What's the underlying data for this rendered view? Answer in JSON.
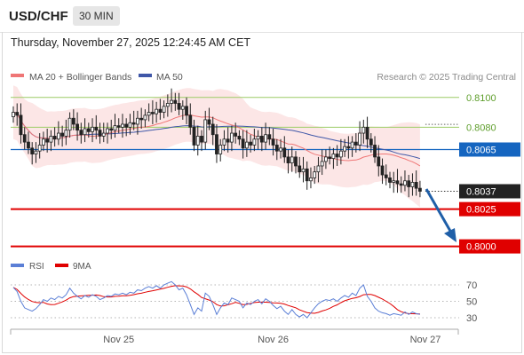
{
  "header": {
    "symbol": "USD/CHF",
    "timeframe": "30 MIN",
    "datetime": "Thursday, November 27, 2025 12:24:45 AM CET"
  },
  "legend": {
    "ma20": "MA 20 + Bollinger Bands",
    "ma50": "MA 50",
    "credit": "Research © 2025 Trading Central"
  },
  "rsi_legend": {
    "rsi": "RSI",
    "ma": "9MA"
  },
  "colors": {
    "ma20": "#ef7676",
    "ma50": "#3f57a8",
    "band": "#fbdede",
    "up": "#ffffff",
    "down": "#222222",
    "support": "#e00000",
    "resistance": "#9ccc65",
    "pivot": "#1565c0",
    "arrow": "#1f5fa8",
    "rsi": "#5b7fd6",
    "rsi_ma": "#e00000"
  },
  "chart_data": [
    {
      "type": "candlestick",
      "x_ticks": [
        "Nov 25",
        "Nov 26",
        "Nov 27"
      ],
      "levels": [
        {
          "value": 0.81,
          "label": "0.8100",
          "role": "resistance"
        },
        {
          "value": 0.808,
          "label": "0.8080",
          "role": "resistance"
        },
        {
          "value": 0.8065,
          "label": "0.8065",
          "role": "pivot"
        },
        {
          "value": 0.8037,
          "label": "0.8037",
          "role": "last-price"
        },
        {
          "value": 0.8025,
          "label": "0.8025",
          "role": "support"
        },
        {
          "value": 0.8,
          "label": "0.8000",
          "role": "support"
        }
      ],
      "forecast_arrow": {
        "from": 0.8037,
        "to": 0.8
      },
      "ylim": [
        0.7995,
        0.8107
      ],
      "close": [
        0.809,
        0.8088,
        0.8075,
        0.807,
        0.8066,
        0.8062,
        0.8064,
        0.8068,
        0.8072,
        0.807,
        0.8074,
        0.8072,
        0.8076,
        0.8074,
        0.8078,
        0.8086,
        0.8082,
        0.8078,
        0.8075,
        0.8079,
        0.8077,
        0.808,
        0.8078,
        0.8074,
        0.8076,
        0.8079,
        0.8078,
        0.8081,
        0.808,
        0.8082,
        0.808,
        0.8083,
        0.8082,
        0.8086,
        0.8085,
        0.8088,
        0.809,
        0.8089,
        0.8092,
        0.809,
        0.8094,
        0.8096,
        0.8098,
        0.8096,
        0.8092,
        0.8094,
        0.8088,
        0.808,
        0.8068,
        0.8074,
        0.807,
        0.8085,
        0.8082,
        0.8075,
        0.8062,
        0.8068,
        0.8072,
        0.807,
        0.8076,
        0.8074,
        0.8072,
        0.8066,
        0.807,
        0.8068,
        0.8072,
        0.8074,
        0.807,
        0.8075,
        0.8072,
        0.8068,
        0.8064,
        0.8066,
        0.806,
        0.8056,
        0.806,
        0.8054,
        0.805,
        0.8052,
        0.8044,
        0.8046,
        0.805,
        0.8054,
        0.8057,
        0.806,
        0.8059,
        0.8062,
        0.806,
        0.8064,
        0.8067,
        0.8066,
        0.807,
        0.8068,
        0.8076,
        0.808,
        0.8072,
        0.8068,
        0.806,
        0.8054,
        0.8048,
        0.8046,
        0.8043,
        0.8044,
        0.8042,
        0.8041,
        0.8044,
        0.804,
        0.8043,
        0.8039,
        0.8037
      ],
      "rsi": [
        67,
        62,
        50,
        42,
        40,
        38,
        41,
        46,
        52,
        50,
        54,
        52,
        56,
        54,
        58,
        66,
        60,
        56,
        53,
        57,
        55,
        58,
        56,
        52,
        54,
        57,
        56,
        59,
        58,
        60,
        58,
        61,
        60,
        64,
        63,
        66,
        68,
        66,
        69,
        66,
        70,
        72,
        74,
        70,
        64,
        66,
        58,
        46,
        34,
        42,
        38,
        60,
        56,
        46,
        34,
        42,
        48,
        46,
        54,
        52,
        50,
        42,
        48,
        46,
        50,
        52,
        47,
        53,
        50,
        45,
        41,
        44,
        38,
        34,
        40,
        34,
        31,
        34,
        30,
        36,
        42,
        47,
        50,
        52,
        51,
        53,
        50,
        54,
        57,
        55,
        60,
        57,
        66,
        70,
        56,
        50,
        42,
        38,
        36,
        35,
        33,
        35,
        34,
        33,
        37,
        34,
        37,
        35,
        34
      ],
      "rsi_ticks": [
        70,
        50,
        30
      ]
    }
  ]
}
